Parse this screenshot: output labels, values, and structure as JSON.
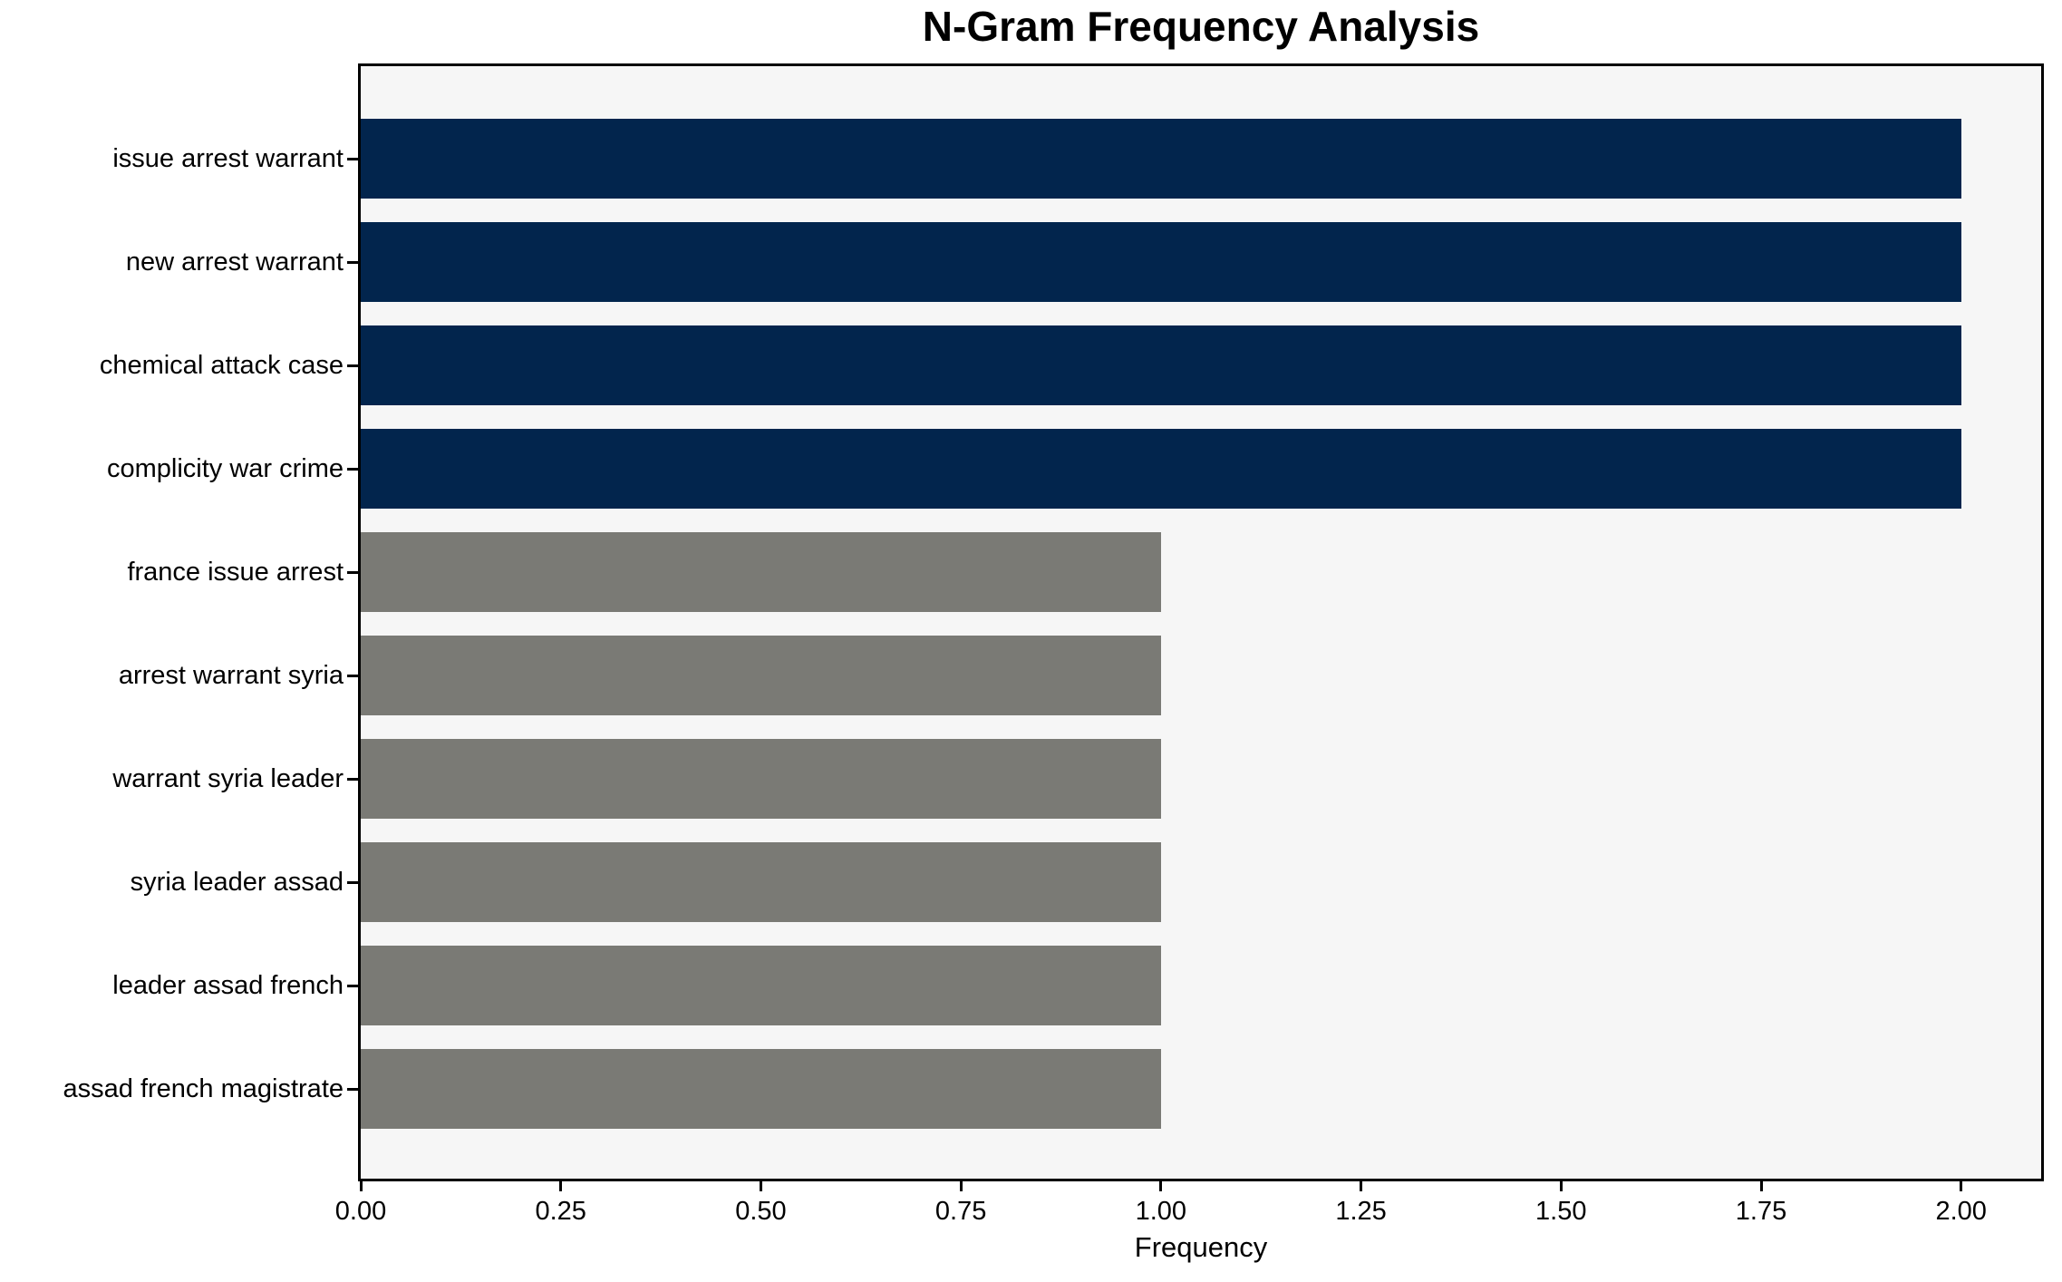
{
  "chart_data": {
    "type": "bar",
    "orientation": "horizontal",
    "title": "N-Gram Frequency Analysis",
    "xlabel": "Frequency",
    "categories": [
      "issue arrest warrant",
      "new arrest warrant",
      "chemical attack case",
      "complicity war crime",
      "france issue arrest",
      "arrest warrant syria",
      "warrant syria leader",
      "syria leader assad",
      "leader assad french",
      "assad french magistrate"
    ],
    "values": [
      2,
      2,
      2,
      2,
      1,
      1,
      1,
      1,
      1,
      1
    ],
    "bar_colors": [
      "#02254D",
      "#02254D",
      "#02254D",
      "#02254D",
      "#7A7A75",
      "#7A7A75",
      "#7A7A75",
      "#7A7A75",
      "#7A7A75",
      "#7A7A75"
    ],
    "xlim": [
      0,
      2.1
    ],
    "xticks": [
      0,
      0.25,
      0.5,
      0.75,
      1.0,
      1.25,
      1.5,
      1.75,
      2.0
    ],
    "xtick_labels": [
      "0.00",
      "0.25",
      "0.50",
      "0.75",
      "1.00",
      "1.25",
      "1.50",
      "1.75",
      "2.00"
    ],
    "grid": false,
    "legend_visible": false,
    "colors": {
      "highlight_bar": "#02254D",
      "default_bar": "#7A7A75",
      "plot_background": "#F6F6F6",
      "figure_background": "#FFFFFF",
      "spine": "#000000",
      "text": "#000000"
    }
  }
}
